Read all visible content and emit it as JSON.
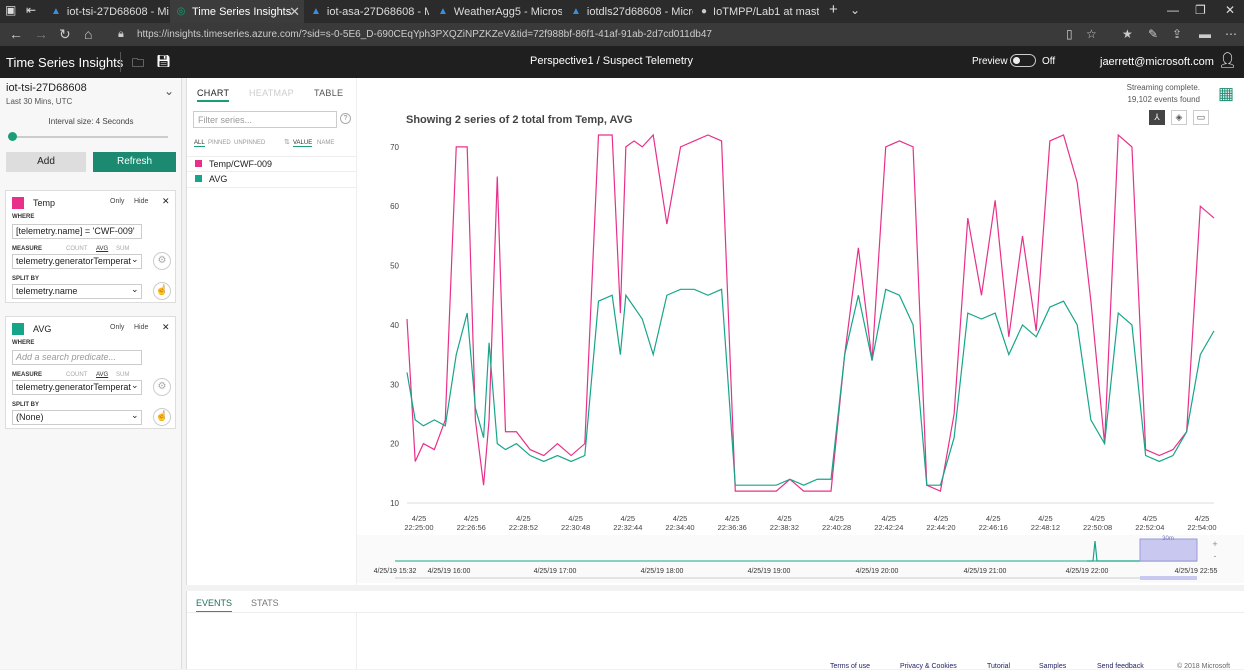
{
  "browser": {
    "tabs": [
      {
        "label": "iot-tsi-27D68608 - Microsof"
      },
      {
        "label": "Time Series Insights",
        "active": true
      },
      {
        "label": "iot-asa-27D68608 - Microsc"
      },
      {
        "label": "WeatherAgg5 - Microsoft A"
      },
      {
        "label": "iotdls27d68608 - Microsoft"
      },
      {
        "label": "IoTMPP/Lab1 at master · jae"
      }
    ],
    "url": "https://insights.timeseries.azure.com/?sid=s-0-5E6_D-690CEqYph3PXQZiNPZKZeV&tid=72f988bf-86f1-41af-91ab-2d7cd011db47"
  },
  "app": {
    "title": "Time Series Insights",
    "perspective": "Perspective1 / Suspect Telemetry",
    "preview_label": "Preview",
    "preview_state": "Off",
    "user": "jaerrett@microsoft.com"
  },
  "left": {
    "env_name": "iot-tsi-27D68608",
    "env_range": "Last 30 Mins, UTC",
    "interval_label": "Interval size: 4 Seconds",
    "add_label": "Add",
    "refresh_label": "Refresh",
    "terms": [
      {
        "name": "Temp",
        "color": "#e8308a",
        "only": "Only",
        "hide": "Hide",
        "where_label": "WHERE",
        "where_value": "[telemetry.name] = 'CWF-009'",
        "where_placeholder": "",
        "measure_label": "MEASURE",
        "count": "COUNT",
        "avg": "AVG",
        "sum": "SUM",
        "measure_value": "telemetry.generatorTemperat",
        "split_label": "SPLIT BY",
        "split_value": "telemetry.name"
      },
      {
        "name": "AVG",
        "color": "#17a589",
        "only": "Only",
        "hide": "Hide",
        "where_label": "WHERE",
        "where_value": "",
        "where_placeholder": "Add a search predicate...",
        "measure_label": "MEASURE",
        "count": "COUNT",
        "avg": "AVG",
        "sum": "SUM",
        "measure_value": "telemetry.generatorTemperat",
        "split_label": "SPLIT BY",
        "split_value": "(None)"
      }
    ]
  },
  "main": {
    "tabs": [
      "CHART",
      "HEATMAP",
      "TABLE"
    ],
    "filter_placeholder": "Filter series...",
    "sort_all": "ALL",
    "sort_pinned": "PINNED",
    "sort_unpinned": "UNPINNED",
    "sort_value": "VALUE",
    "sort_name": "NAME",
    "series": [
      {
        "name": "Temp/CWF-009",
        "color": "#e8308a"
      },
      {
        "name": "AVG",
        "color": "#17a589"
      }
    ],
    "chart_title": "Showing 2 series of 2 total from Temp, AVG",
    "streaming": "Streaming complete.",
    "events_found": "19,102 events found",
    "brush_label": "30m",
    "bottom_tabs": [
      "EVENTS",
      "STATS"
    ],
    "footer_links": [
      "Terms of use",
      "Privacy & Cookies",
      "Tutorial",
      "Samples",
      "Send feedback",
      "© 2018 Microsoft"
    ]
  },
  "chart_data": {
    "type": "line",
    "title": "Showing 2 series of 2 total from Temp, AVG",
    "ylim": [
      10,
      72
    ],
    "yticks": [
      10,
      20,
      30,
      40,
      50,
      60,
      70
    ],
    "xticks": [
      "4/25 22:25:00",
      "4/25 22:26:56",
      "4/25 22:28:52",
      "4/25 22:30:48",
      "4/25 22:32:44",
      "4/25 22:34:40",
      "4/25 22:36:36",
      "4/25 22:38:32",
      "4/25 22:40:28",
      "4/25 22:42:24",
      "4/25 22:44:20",
      "4/25 22:46:16",
      "4/25 22:48:12",
      "4/25 22:50:08",
      "4/25 22:52:04",
      "4/25 22:54:00"
    ],
    "x_minutes": [
      0,
      0.3,
      0.6,
      1,
      1.4,
      1.8,
      2.2,
      2.5,
      2.8,
      3,
      3.3,
      3.6,
      4,
      4.5,
      5,
      5.5,
      6,
      6.5,
      7,
      7.5,
      7.8,
      8,
      8.3,
      8.6,
      9,
      9.5,
      10,
      10.5,
      11,
      11.5,
      12,
      12.5,
      13,
      13.5,
      14,
      14.5,
      15,
      15.5,
      16,
      16.5,
      17,
      17.5,
      18,
      18.5,
      19,
      19.5,
      20,
      20.5,
      21,
      21.5,
      22,
      22.5,
      23,
      23.5,
      24,
      24.5,
      25,
      25.5,
      26,
      26.5,
      27,
      27.5,
      28,
      28.5,
      29,
      29.5
    ],
    "series": [
      {
        "name": "Temp/CWF-009",
        "color": "#e8308a",
        "values": [
          41,
          17,
          20,
          19,
          24,
          70,
          70,
          24,
          13,
          24,
          65,
          22,
          22,
          19,
          18,
          20,
          18,
          20,
          72,
          72,
          42,
          70,
          71,
          70,
          72,
          57,
          70,
          71,
          72,
          71,
          12,
          12,
          12,
          12,
          14,
          12,
          12,
          12,
          35,
          53,
          34,
          70,
          71,
          70,
          13,
          12,
          25,
          58,
          45,
          61,
          38,
          55,
          39,
          71,
          72,
          64,
          44,
          20,
          72,
          70,
          19,
          18,
          19,
          22,
          60,
          58
        ],
        "y_note": ""
      },
      {
        "name": "AVG",
        "color": "#17a589",
        "values": [
          32,
          24,
          23,
          24,
          23,
          35,
          42,
          26,
          21,
          37,
          20,
          19,
          20,
          18,
          17,
          18,
          17,
          18,
          44,
          45,
          35,
          45,
          43,
          41,
          35,
          45,
          46,
          46,
          45,
          46,
          13,
          13,
          13,
          13,
          14,
          13,
          14,
          14,
          35,
          45,
          34,
          46,
          45,
          40,
          13,
          13,
          21,
          42,
          41,
          42,
          35,
          40,
          38,
          43,
          44,
          40,
          24,
          20,
          42,
          40,
          18,
          17,
          18,
          22,
          35,
          39
        ]
      }
    ]
  },
  "timeline": {
    "labels": [
      "4/25/19 15:32",
      "4/25/19 16:00",
      "4/25/19 17:00",
      "4/25/19 18:00",
      "4/25/19 19:00",
      "4/25/19 20:00",
      "4/25/19 21:00",
      "4/25/19 22:00",
      "4/25/19 22:55"
    ]
  }
}
